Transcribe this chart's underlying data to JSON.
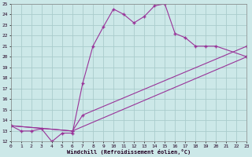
{
  "xlabel": "Windchill (Refroidissement éolien,°C)",
  "bg_color": "#cce8e8",
  "grid_color": "#aacccc",
  "line_color": "#993399",
  "xmin": 0,
  "xmax": 23,
  "ymin": 12,
  "ymax": 25,
  "series1": [
    [
      0,
      13.5
    ],
    [
      1,
      13.0
    ],
    [
      2,
      13.0
    ],
    [
      3,
      13.2
    ],
    [
      4,
      12.0
    ],
    [
      5,
      12.8
    ],
    [
      6,
      12.8
    ],
    [
      7,
      17.5
    ],
    [
      8,
      21.0
    ],
    [
      9,
      22.8
    ],
    [
      10,
      24.5
    ],
    [
      11,
      24.0
    ],
    [
      12,
      23.2
    ],
    [
      13,
      23.8
    ],
    [
      14,
      24.8
    ],
    [
      15,
      25.0
    ],
    [
      16,
      22.2
    ],
    [
      17,
      21.8
    ],
    [
      18,
      21.0
    ],
    [
      19,
      21.0
    ],
    [
      20,
      21.0
    ],
    [
      23,
      20.0
    ]
  ],
  "series2": [
    [
      0,
      13.5
    ],
    [
      6,
      13.0
    ],
    [
      7,
      14.5
    ],
    [
      23,
      21.0
    ]
  ],
  "series3": [
    [
      0,
      13.5
    ],
    [
      6,
      13.0
    ],
    [
      23,
      20.0
    ]
  ]
}
